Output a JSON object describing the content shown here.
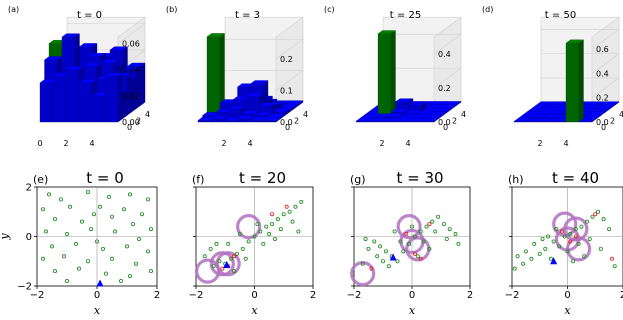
{
  "chart_data": [
    {
      "type": "bar3d",
      "panel": "(a)",
      "title": "t = 0",
      "x_ticks": [
        "0",
        "2",
        "4"
      ],
      "y_ticks": [
        "0",
        "2",
        "4"
      ],
      "z_ticks": [
        "0.00",
        "0.02",
        "0.04",
        "0.06"
      ],
      "zlim": [
        0,
        0.065
      ],
      "grid_size": 6,
      "heights": [
        [
          0.03,
          0.035,
          0.04,
          0.03,
          0.02,
          0.035
        ],
        [
          0.045,
          0.03,
          0.025,
          0.04,
          0.03,
          0.02
        ],
        [
          0.05,
          0.06,
          0.035,
          0.045,
          0.04,
          0.03
        ],
        [
          0.025,
          0.04,
          0.05,
          0.03,
          0.035,
          0.025
        ],
        [
          0.035,
          0.02,
          0.03,
          0.04,
          0.045,
          0.03
        ],
        [
          0.03,
          0.025,
          0.035,
          0.03,
          0.025,
          0.03
        ]
      ],
      "highlight": {
        "row": 2,
        "col": 0,
        "value": 0.055,
        "color": "#008000"
      },
      "bar_color": "#0000ff"
    },
    {
      "type": "bar3d",
      "panel": "(b)",
      "title": "t = 3",
      "x_ticks": [
        "2",
        "4"
      ],
      "y_ticks": [
        "0",
        "2",
        "4"
      ],
      "z_ticks": [
        "0.0",
        "0.1",
        "0.2"
      ],
      "zlim": [
        0,
        0.27
      ],
      "grid_size": 6,
      "heights": [
        [
          0.005,
          0.01,
          0.005,
          0.01,
          0.005,
          0.005
        ],
        [
          0.01,
          0.02,
          0.03,
          0.015,
          0.01,
          0.005
        ],
        [
          0.005,
          0.04,
          0.05,
          0.06,
          0.03,
          0.01
        ],
        [
          0.005,
          0.01,
          0.08,
          0.09,
          0.02,
          0.005
        ],
        [
          0.005,
          0.005,
          0.02,
          0.03,
          0.01,
          0.005
        ],
        [
          0.005,
          0.005,
          0.005,
          0.01,
          0.005,
          0.005
        ]
      ],
      "highlight": {
        "row": 2,
        "col": 0,
        "value": 0.25,
        "color": "#008000"
      },
      "bar_color": "#0000ff"
    },
    {
      "type": "bar3d",
      "panel": "(c)",
      "title": "t = 25",
      "x_ticks": [
        "2",
        "4"
      ],
      "y_ticks": [
        "0",
        "2",
        "4"
      ],
      "z_ticks": [
        "0.0",
        "0.2",
        "0.4"
      ],
      "zlim": [
        0,
        0.5
      ],
      "grid_size": 6,
      "heights": [
        [
          0.005,
          0.005,
          0.005,
          0.005,
          0.005,
          0.005
        ],
        [
          0.005,
          0.01,
          0.01,
          0.005,
          0.005,
          0.005
        ],
        [
          0.005,
          0.015,
          0.02,
          0.01,
          0.005,
          0.005
        ],
        [
          0.005,
          0.01,
          0.06,
          0.04,
          0.005,
          0.005
        ],
        [
          0.005,
          0.005,
          0.01,
          0.01,
          0.005,
          0.005
        ],
        [
          0.005,
          0.005,
          0.005,
          0.005,
          0.005,
          0.005
        ]
      ],
      "highlight": {
        "row": 2,
        "col": 1,
        "value": 0.48,
        "color": "#008000"
      },
      "bar_color": "#0000ff"
    },
    {
      "type": "bar3d",
      "panel": "(d)",
      "title": "t = 50",
      "x_ticks": [
        "2",
        "4"
      ],
      "y_ticks": [
        "0",
        "2",
        "4"
      ],
      "z_ticks": [
        "0.0",
        "0.2",
        "0.4",
        "0.6"
      ],
      "zlim": [
        0,
        0.7
      ],
      "grid_size": 6,
      "heights": [
        [
          0.005,
          0.005,
          0.005,
          0.005,
          0.005,
          0.005
        ],
        [
          0.005,
          0.01,
          0.01,
          0.005,
          0.005,
          0.005
        ],
        [
          0.005,
          0.01,
          0.015,
          0.01,
          0.005,
          0.005
        ],
        [
          0.005,
          0.01,
          0.01,
          0.01,
          0.005,
          0.005
        ],
        [
          0.005,
          0.005,
          0.005,
          0.005,
          0.005,
          0.005
        ],
        [
          0.005,
          0.005,
          0.005,
          0.005,
          0.005,
          0.005
        ]
      ],
      "highlight": {
        "row": 0,
        "col": 4,
        "value": 0.65,
        "color": "#008000"
      },
      "bar_color": "#0000ff"
    },
    {
      "type": "scatter",
      "panel": "(e)",
      "title": "t = 0",
      "xlabel": "x",
      "ylabel": "y",
      "xlim": [
        -2,
        2
      ],
      "ylim": [
        -2,
        2
      ],
      "x_ticks": [
        "−2",
        "0",
        "2"
      ],
      "y_ticks": [
        "−2",
        "0",
        "2"
      ],
      "agents": [
        [
          -1.6,
          1.7
        ],
        [
          -1.2,
          1.5
        ],
        [
          -0.3,
          1.8
        ],
        [
          0.4,
          1.6
        ],
        [
          1.1,
          1.7
        ],
        [
          1.7,
          1.5
        ],
        [
          -1.8,
          1.1
        ],
        [
          -0.9,
          1.2
        ],
        [
          0.1,
          1.2
        ],
        [
          0.9,
          1.1
        ],
        [
          1.5,
          0.9
        ],
        [
          -1.4,
          0.7
        ],
        [
          -0.5,
          0.6
        ],
        [
          0.5,
          0.8
        ],
        [
          1.2,
          0.5
        ],
        [
          1.8,
          0.3
        ],
        [
          -1.7,
          0.2
        ],
        [
          -1.0,
          0.1
        ],
        [
          -0.2,
          0.3
        ],
        [
          0.6,
          0.2
        ],
        [
          1.4,
          -0.1
        ],
        [
          -1.5,
          -0.4
        ],
        [
          -0.7,
          -0.3
        ],
        [
          0.2,
          -0.5
        ],
        [
          1.0,
          -0.4
        ],
        [
          1.7,
          -0.6
        ],
        [
          -1.8,
          -0.9
        ],
        [
          -1.1,
          -0.8
        ],
        [
          -0.3,
          -1.0
        ],
        [
          0.5,
          -0.9
        ],
        [
          1.3,
          -1.1
        ],
        [
          -1.4,
          -1.4
        ],
        [
          -0.6,
          -1.3
        ],
        [
          0.3,
          -1.5
        ],
        [
          1.1,
          -1.6
        ],
        [
          1.8,
          -1.4
        ],
        [
          -1.0,
          -1.8
        ],
        [
          0.8,
          -1.8
        ],
        [
          -0.1,
          0.9
        ],
        [
          0.0,
          -0.2
        ]
      ],
      "infected": [],
      "leaders": [
        [
          0.1,
          -1.9
        ]
      ],
      "circles": []
    },
    {
      "type": "scatter",
      "panel": "(f)",
      "title": "t = 20",
      "xlabel": "x",
      "ylabel": "",
      "xlim": [
        -2,
        2
      ],
      "ylim": [
        -2,
        2
      ],
      "x_ticks": [
        "−2",
        "0",
        "2"
      ],
      "y_ticks": [],
      "agents": [
        [
          -1.4,
          -1.2
        ],
        [
          -1.2,
          -1.0
        ],
        [
          -1.0,
          -1.1
        ],
        [
          -0.8,
          -0.9
        ],
        [
          -0.6,
          -0.7
        ],
        [
          -0.4,
          -0.5
        ],
        [
          -0.2,
          -0.2
        ],
        [
          0.0,
          0.0
        ],
        [
          0.2,
          0.2
        ],
        [
          0.4,
          0.4
        ],
        [
          0.6,
          0.5
        ],
        [
          0.8,
          0.7
        ],
        [
          1.0,
          0.9
        ],
        [
          1.2,
          1.0
        ],
        [
          1.4,
          1.2
        ],
        [
          1.6,
          1.4
        ],
        [
          -1.7,
          -0.8
        ],
        [
          -1.5,
          -0.5
        ],
        [
          -1.3,
          -0.3
        ],
        [
          -0.9,
          -0.3
        ],
        [
          -0.5,
          0.1
        ],
        [
          0.1,
          0.5
        ],
        [
          0.5,
          0.1
        ],
        [
          0.9,
          0.3
        ],
        [
          1.3,
          0.6
        ],
        [
          1.5,
          0.2
        ],
        [
          -0.7,
          -1.4
        ],
        [
          -0.3,
          -0.9
        ],
        [
          0.3,
          -0.3
        ],
        [
          0.7,
          -0.1
        ]
      ],
      "infected": [
        [
          -1.1,
          -1.3
        ],
        [
          -0.9,
          -1.2
        ],
        [
          -0.7,
          -0.8
        ],
        [
          1.1,
          1.2
        ],
        [
          0.6,
          0.9
        ]
      ],
      "leaders": [
        [
          -0.95,
          -1.15
        ]
      ],
      "circles": [
        [
          -1.6,
          -1.4
        ],
        [
          -1.1,
          -1.1
        ],
        [
          -0.9,
          -1.1
        ],
        [
          -0.2,
          0.4
        ]
      ]
    },
    {
      "type": "scatter",
      "panel": "(g)",
      "title": "t = 30",
      "xlabel": "x",
      "ylabel": "",
      "xlim": [
        -2,
        2
      ],
      "ylim": [
        -2,
        2
      ],
      "x_ticks": [
        "−2",
        "0",
        "2"
      ],
      "y_ticks": [],
      "agents": [
        [
          -1.6,
          -0.1
        ],
        [
          -1.3,
          -0.2
        ],
        [
          -1.1,
          -0.4
        ],
        [
          -0.9,
          -0.6
        ],
        [
          -0.7,
          -0.8
        ],
        [
          -0.5,
          -1.0
        ],
        [
          -0.3,
          -0.6
        ],
        [
          -0.1,
          -0.3
        ],
        [
          0.1,
          0.0
        ],
        [
          0.3,
          0.2
        ],
        [
          0.5,
          0.4
        ],
        [
          0.7,
          0.6
        ],
        [
          0.9,
          0.8
        ],
        [
          1.1,
          0.5
        ],
        [
          1.3,
          0.3
        ],
        [
          1.5,
          0.1
        ],
        [
          -1.5,
          -0.5
        ],
        [
          -1.2,
          -0.8
        ],
        [
          -1.0,
          -1.0
        ],
        [
          -0.8,
          -1.2
        ],
        [
          -0.4,
          -0.2
        ],
        [
          0.0,
          0.4
        ],
        [
          0.4,
          -0.2
        ],
        [
          0.8,
          0.2
        ],
        [
          1.2,
          -0.1
        ],
        [
          1.6,
          -0.3
        ],
        [
          -1.7,
          -1.1
        ],
        [
          -0.6,
          0.2
        ],
        [
          0.2,
          -0.8
        ],
        [
          0.6,
          -0.5
        ]
      ],
      "infected": [
        [
          -1.4,
          -1.3
        ],
        [
          -0.2,
          0.1
        ],
        [
          0.1,
          -0.7
        ],
        [
          0.3,
          -0.9
        ],
        [
          0.6,
          0.5
        ]
      ],
      "leaders": [
        [
          -0.65,
          -0.85
        ]
      ],
      "circles": [
        [
          -1.7,
          -1.5
        ],
        [
          -0.1,
          0.4
        ],
        [
          0.0,
          -0.2
        ],
        [
          0.2,
          -0.5
        ]
      ]
    },
    {
      "type": "scatter",
      "panel": "(h)",
      "title": "t = 40",
      "xlabel": "x",
      "ylabel": "",
      "xlim": [
        -2,
        2
      ],
      "ylim": [
        -2,
        2
      ],
      "x_ticks": [
        "−2",
        "0",
        "2"
      ],
      "y_ticks": [],
      "agents": [
        [
          -1.8,
          -0.8
        ],
        [
          -1.5,
          -0.6
        ],
        [
          -1.2,
          -0.3
        ],
        [
          -0.9,
          -0.1
        ],
        [
          -0.7,
          0.0
        ],
        [
          -0.5,
          -0.2
        ],
        [
          -0.3,
          -0.4
        ],
        [
          -0.1,
          0.0
        ],
        [
          0.1,
          0.1
        ],
        [
          0.3,
          0.3
        ],
        [
          0.5,
          0.4
        ],
        [
          0.7,
          0.6
        ],
        [
          0.9,
          0.8
        ],
        [
          1.1,
          1.0
        ],
        [
          1.3,
          0.7
        ],
        [
          1.5,
          0.3
        ],
        [
          -1.6,
          -1.1
        ],
        [
          -1.3,
          -0.9
        ],
        [
          -1.0,
          -0.7
        ],
        [
          -0.8,
          -0.5
        ],
        [
          -0.6,
          -0.9
        ],
        [
          0.0,
          -0.6
        ],
        [
          0.4,
          -0.3
        ],
        [
          0.8,
          -0.1
        ],
        [
          1.2,
          -0.5
        ],
        [
          1.7,
          -1.2
        ],
        [
          -1.9,
          -1.3
        ],
        [
          -0.4,
          0.3
        ],
        [
          0.2,
          -1.0
        ],
        [
          0.6,
          -0.8
        ]
      ],
      "infected": [
        [
          -0.2,
          0.2
        ],
        [
          0.1,
          -0.2
        ],
        [
          0.3,
          0.0
        ],
        [
          1.0,
          0.9
        ],
        [
          1.6,
          -0.9
        ]
      ],
      "leaders": [
        [
          -0.5,
          -1.0
        ]
      ],
      "circles": [
        [
          -0.1,
          0.5
        ],
        [
          0.3,
          0.3
        ],
        [
          0.0,
          -0.1
        ],
        [
          0.4,
          -0.5
        ]
      ]
    }
  ]
}
